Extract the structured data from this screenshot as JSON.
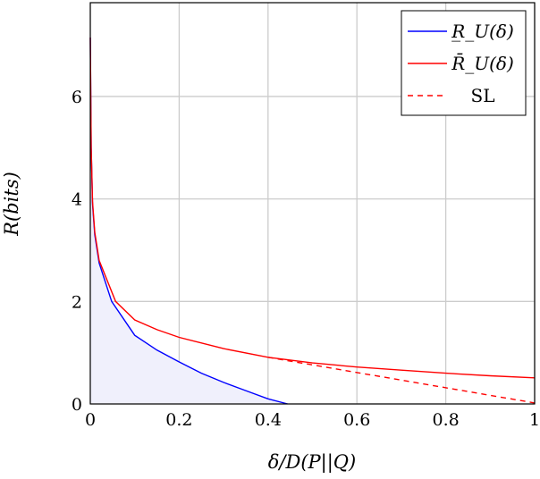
{
  "chart_data": {
    "type": "line",
    "xlabel": "δ/D(P||Q)",
    "ylabel": "R(bits)",
    "xlim": [
      0,
      1
    ],
    "ylim": [
      0,
      7.83
    ],
    "xticks": [
      "0",
      "0.2",
      "0.4",
      "0.6",
      "0.8",
      "1"
    ],
    "yticks": [
      "0",
      "2",
      "4",
      "6"
    ],
    "grid": true,
    "legend_position": "top-right",
    "series": [
      {
        "name": "R̲_U(δ)",
        "color": "#0000ff",
        "style": "solid",
        "filled": true,
        "fill_color": "#f0f0fc",
        "points": [
          [
            0,
            7.15
          ],
          [
            0.002,
            5.0
          ],
          [
            0.005,
            3.9
          ],
          [
            0.01,
            3.3
          ],
          [
            0.02,
            2.75
          ],
          [
            0.048,
            2.0
          ],
          [
            0.1,
            1.34
          ],
          [
            0.15,
            1.05
          ],
          [
            0.2,
            0.82
          ],
          [
            0.25,
            0.6
          ],
          [
            0.3,
            0.42
          ],
          [
            0.35,
            0.26
          ],
          [
            0.4,
            0.1
          ],
          [
            0.444,
            0
          ]
        ]
      },
      {
        "name": "R̄_U(δ)",
        "color": "#ff0000",
        "style": "solid",
        "points": [
          [
            0,
            7.15
          ],
          [
            0.002,
            5.0
          ],
          [
            0.005,
            3.95
          ],
          [
            0.01,
            3.35
          ],
          [
            0.02,
            2.8
          ],
          [
            0.057,
            2.0
          ],
          [
            0.1,
            1.64
          ],
          [
            0.15,
            1.45
          ],
          [
            0.2,
            1.3
          ],
          [
            0.3,
            1.08
          ],
          [
            0.4,
            0.91
          ],
          [
            0.5,
            0.8
          ],
          [
            0.6,
            0.72
          ],
          [
            0.7,
            0.66
          ],
          [
            0.8,
            0.6
          ],
          [
            0.9,
            0.55
          ],
          [
            1,
            0.51
          ]
        ]
      },
      {
        "name": "SL",
        "color": "#ff0000",
        "style": "dashed",
        "points": [
          [
            0.4,
            0.91
          ],
          [
            1,
            0.02
          ]
        ]
      }
    ]
  }
}
